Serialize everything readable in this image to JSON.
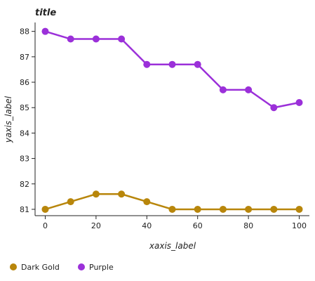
{
  "chart_data": {
    "type": "line",
    "title": "title",
    "xlabel": "xaxis_label",
    "ylabel": "yaxis_label",
    "xlim": [
      -4,
      104
    ],
    "ylim": [
      80.75,
      88.35
    ],
    "x_ticks": [
      0,
      20,
      40,
      60,
      80,
      100
    ],
    "y_ticks": [
      81,
      82,
      83,
      84,
      85,
      86,
      87,
      88
    ],
    "grid": false,
    "legend_position": "bottom",
    "x": [
      0,
      10,
      20,
      30,
      40,
      50,
      60,
      70,
      80,
      90,
      100
    ],
    "series": [
      {
        "name": "Dark Gold",
        "color": "#b8860b",
        "values": [
          81.0,
          81.3,
          81.6,
          81.6,
          81.3,
          81.0,
          81.0,
          81.0,
          81.0,
          81.0,
          81.0
        ]
      },
      {
        "name": "Purple",
        "color": "#9b30d9",
        "values": [
          88.0,
          87.7,
          87.7,
          87.7,
          86.7,
          86.7,
          86.7,
          85.7,
          85.7,
          85.0,
          85.2
        ]
      }
    ]
  }
}
